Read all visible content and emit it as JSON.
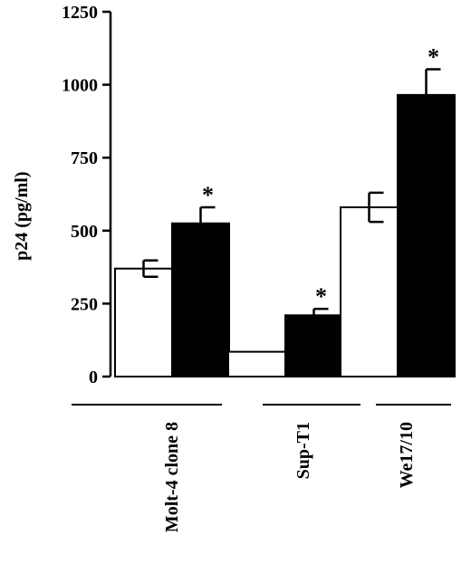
{
  "chart_data": {
    "type": "bar",
    "ylabel": "p24  (pg/ml)",
    "ylim": [
      0,
      1250
    ],
    "yticks": [
      0,
      250,
      500,
      750,
      1000,
      1250
    ],
    "categories": [
      "Molt-4  clone  8",
      "Sup-T1",
      "We17/10"
    ],
    "series": [
      {
        "fill": "#ffffff",
        "values": [
          370,
          85,
          580
        ],
        "errors": [
          28,
          0,
          50
        ],
        "significant": [
          false,
          false,
          false
        ]
      },
      {
        "fill": "#000000",
        "values": [
          525,
          210,
          965
        ],
        "errors": [
          55,
          22,
          88
        ],
        "significant": [
          true,
          true,
          true
        ]
      }
    ],
    "significance_marker": "*",
    "grid": false
  }
}
